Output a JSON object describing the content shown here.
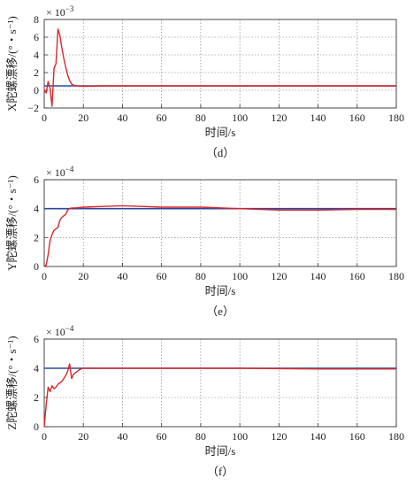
{
  "chart_data": [
    {
      "id": "d",
      "type": "line",
      "caption": "（d）",
      "xlabel": "时间/s",
      "ylabel": "X陀螺漂移/(°・s⁻¹)",
      "exponent": "× 10",
      "exponent_power": "−3",
      "xlim": [
        0,
        180
      ],
      "ylim": [
        -2,
        8
      ],
      "xticks": [
        0,
        20,
        40,
        60,
        80,
        100,
        120,
        140,
        160,
        180
      ],
      "yticks": [
        -2,
        0,
        2,
        4,
        6,
        8
      ],
      "ytick_labels": [
        "−2",
        "0",
        "2",
        "4",
        "6",
        "8"
      ],
      "grid": true,
      "series": [
        {
          "color": "#2b4a9b",
          "x": [
            0,
            180
          ],
          "y": [
            0.5,
            0.5
          ]
        },
        {
          "color": "#d8272b",
          "x": [
            0,
            1,
            2,
            3,
            4,
            5,
            6,
            7,
            8,
            9,
            10,
            11,
            12,
            13,
            14,
            15,
            17,
            20,
            30,
            60,
            100,
            140,
            180
          ],
          "y": [
            0,
            -0.3,
            1.0,
            0.2,
            -1.8,
            2.5,
            3.0,
            6.9,
            6.2,
            4.8,
            3.6,
            2.6,
            1.7,
            1.1,
            0.7,
            0.55,
            0.5,
            0.45,
            0.5,
            0.5,
            0.5,
            0.5,
            0.5
          ]
        }
      ]
    },
    {
      "id": "e",
      "type": "line",
      "caption": "（e）",
      "xlabel": "时间/s",
      "ylabel": "Y陀螺漂移/(°・s⁻¹)",
      "exponent": "× 10",
      "exponent_power": "−4",
      "xlim": [
        0,
        180
      ],
      "ylim": [
        0,
        6
      ],
      "xticks": [
        0,
        20,
        40,
        60,
        80,
        100,
        120,
        140,
        160,
        180
      ],
      "yticks": [
        0,
        2,
        4,
        6
      ],
      "ytick_labels": [
        "0",
        "2",
        "4",
        "6"
      ],
      "grid": true,
      "series": [
        {
          "color": "#2b4a9b",
          "x": [
            0,
            180
          ],
          "y": [
            4.0,
            4.0
          ]
        },
        {
          "color": "#d8272b",
          "x": [
            0,
            1,
            2,
            3,
            4,
            5,
            6,
            7,
            8,
            9,
            10,
            11,
            12,
            13,
            14,
            16,
            20,
            30,
            40,
            50,
            60,
            80,
            100,
            120,
            140,
            160,
            180
          ],
          "y": [
            0,
            0.1,
            0.8,
            1.8,
            2.2,
            2.5,
            2.6,
            2.7,
            3.2,
            3.4,
            3.5,
            3.6,
            3.9,
            4.0,
            4.05,
            4.05,
            4.1,
            4.15,
            4.2,
            4.15,
            4.1,
            4.1,
            4.0,
            3.9,
            3.9,
            3.95,
            3.95
          ]
        }
      ]
    },
    {
      "id": "f",
      "type": "line",
      "caption": "（f）",
      "xlabel": "时间/s",
      "ylabel": "Z陀螺漂移/(°・s⁻¹)",
      "exponent": "× 10",
      "exponent_power": "−4",
      "xlim": [
        0,
        180
      ],
      "ylim": [
        0,
        6
      ],
      "xticks": [
        0,
        20,
        40,
        60,
        80,
        100,
        120,
        140,
        160,
        180
      ],
      "yticks": [
        0,
        2,
        4,
        6
      ],
      "ytick_labels": [
        "0",
        "2",
        "4",
        "6"
      ],
      "grid": true,
      "series": [
        {
          "color": "#2b4a9b",
          "x": [
            0,
            180
          ],
          "y": [
            4.0,
            4.0
          ]
        },
        {
          "color": "#d8272b",
          "x": [
            0,
            1,
            2,
            3,
            4,
            5,
            6,
            7,
            8,
            9,
            10,
            11,
            12,
            13,
            14,
            15,
            16,
            17,
            18,
            20,
            30,
            60,
            100,
            140,
            180
          ],
          "y": [
            0,
            1.5,
            2.7,
            2.4,
            2.8,
            2.6,
            2.7,
            2.9,
            3.0,
            3.1,
            3.3,
            3.5,
            3.8,
            4.3,
            3.3,
            3.6,
            3.7,
            3.8,
            3.9,
            4.0,
            4.0,
            4.0,
            4.0,
            3.95,
            3.95
          ]
        }
      ]
    }
  ]
}
